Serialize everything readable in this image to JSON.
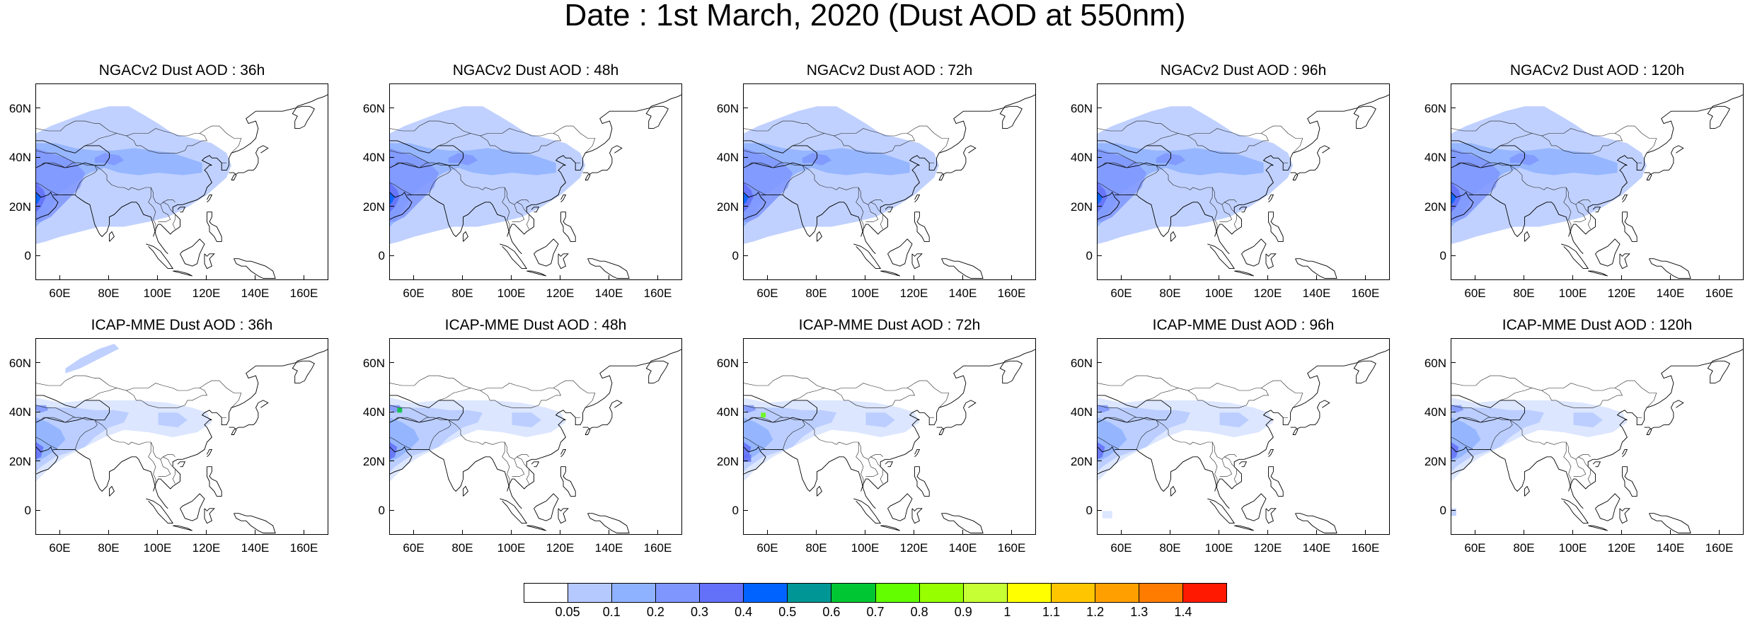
{
  "figure": {
    "title": "Date : 1st March, 2020 (Dust AOD at 550nm)"
  },
  "axes": {
    "lat_ticks": [
      "60N",
      "40N",
      "20N",
      "0"
    ],
    "lon_ticks": [
      "60E",
      "80E",
      "100E",
      "120E",
      "140E",
      "160E"
    ],
    "lat_range": [
      -10,
      70
    ],
    "lon_range": [
      50,
      170
    ]
  },
  "panels": [
    {
      "title": "NGACv2 Dust AOD : 36h",
      "model": "NGACv2",
      "lead_hours": 36
    },
    {
      "title": "NGACv2 Dust AOD : 48h",
      "model": "NGACv2",
      "lead_hours": 48
    },
    {
      "title": "NGACv2 Dust AOD : 72h",
      "model": "NGACv2",
      "lead_hours": 72
    },
    {
      "title": "NGACv2 Dust AOD : 96h",
      "model": "NGACv2",
      "lead_hours": 96
    },
    {
      "title": "NGACv2 Dust AOD : 120h",
      "model": "NGACv2",
      "lead_hours": 120
    },
    {
      "title": "ICAP-MME Dust AOD : 36h",
      "model": "ICAP-MME",
      "lead_hours": 36
    },
    {
      "title": "ICAP-MME Dust AOD : 48h",
      "model": "ICAP-MME",
      "lead_hours": 48
    },
    {
      "title": "ICAP-MME Dust AOD : 72h",
      "model": "ICAP-MME",
      "lead_hours": 72
    },
    {
      "title": "ICAP-MME Dust AOD : 96h",
      "model": "ICAP-MME",
      "lead_hours": 96
    },
    {
      "title": "ICAP-MME Dust AOD : 120h",
      "model": "ICAP-MME",
      "lead_hours": 120
    }
  ],
  "colorbar": {
    "labels": [
      "0.05",
      "0.1",
      "0.2",
      "0.3",
      "0.4",
      "0.5",
      "0.6",
      "0.7",
      "0.8",
      "0.9",
      "1",
      "1.1",
      "1.2",
      "1.3",
      "1.4"
    ],
    "colors": [
      "#ffffff",
      "#d6e2ff",
      "#b5c9ff",
      "#8eb2ff",
      "#7f96ff",
      "#6370f8",
      "#0063ff",
      "#009696",
      "#00c633",
      "#63ff00",
      "#96ff00",
      "#c6ff33",
      "#ffff00",
      "#ffc600",
      "#ffa000",
      "#ff7c00",
      "#ff1900"
    ]
  }
}
